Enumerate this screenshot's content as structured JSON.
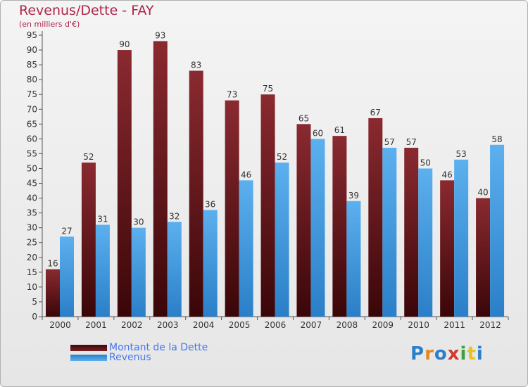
{
  "chart_data": {
    "type": "bar",
    "title": "Revenus/Dette - FAY",
    "subtitle": "(en milliers d'€)",
    "categories": [
      "2000",
      "2001",
      "2002",
      "2003",
      "2004",
      "2005",
      "2006",
      "2007",
      "2008",
      "2009",
      "2010",
      "2011",
      "2012"
    ],
    "series": [
      {
        "name": "Montant de la Dette",
        "color": "#7a1f24",
        "values": [
          16,
          52,
          90,
          93,
          83,
          73,
          75,
          65,
          61,
          67,
          57,
          46,
          40
        ]
      },
      {
        "name": "Revenus",
        "color": "#4ea3e6",
        "values": [
          27,
          31,
          30,
          32,
          36,
          46,
          52,
          60,
          39,
          57,
          50,
          53,
          58
        ]
      }
    ],
    "ylim": [
      0,
      95
    ],
    "ytick_step": 5,
    "grid": false,
    "legend_position": "bottom-left"
  },
  "logo": {
    "text": "Proxiti"
  }
}
